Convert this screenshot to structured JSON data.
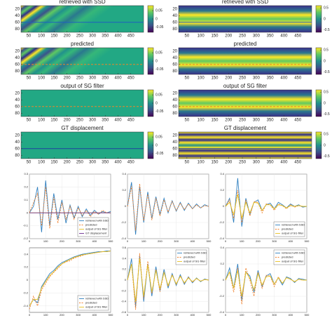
{
  "chart_data": [
    {
      "type": "heatmap",
      "title": "retrieved with SSD",
      "xlim": [
        20,
        500
      ],
      "xticks": [
        50,
        100,
        150,
        200,
        250,
        300,
        350,
        400,
        450
      ],
      "ylim": [
        10,
        90
      ],
      "yticks": [
        20,
        40,
        60,
        80
      ],
      "clim": [
        -0.08,
        0.08
      ],
      "cticks": [
        -0.05,
        0,
        0.05
      ],
      "colormap": "noise",
      "line_y": 60,
      "line_color": "#1f5fbf",
      "line_dash": false
    },
    {
      "type": "heatmap",
      "title": "retrieved with SSD",
      "xlim": [
        20,
        500
      ],
      "xticks": [
        50,
        100,
        150,
        200,
        250,
        300,
        350,
        400,
        450
      ],
      "ylim": [
        10,
        90
      ],
      "yticks": [
        20,
        40,
        60,
        80
      ],
      "clim": [
        -0.6,
        0.6
      ],
      "cticks": [
        -0.5,
        0,
        0.5
      ],
      "colormap": "fan",
      "line_y": 60,
      "line_color": "#1f5fbf",
      "line_dash": false
    },
    {
      "type": "heatmap",
      "title": "predicted",
      "xlim": [
        20,
        500
      ],
      "xticks": [
        50,
        100,
        150,
        200,
        250,
        300,
        350,
        400,
        450
      ],
      "ylim": [
        10,
        90
      ],
      "yticks": [
        20,
        40,
        60,
        80
      ],
      "clim": [
        -0.08,
        0.08
      ],
      "cticks": [
        -0.05,
        0,
        0.05
      ],
      "colormap": "noise",
      "line_y": 60,
      "line_color": "#e8862a",
      "line_dash": true
    },
    {
      "type": "heatmap",
      "title": "predicted",
      "xlim": [
        20,
        500
      ],
      "xticks": [
        50,
        100,
        150,
        200,
        250,
        300,
        350,
        400,
        450
      ],
      "ylim": [
        10,
        90
      ],
      "yticks": [
        20,
        40,
        60,
        80
      ],
      "clim": [
        -0.6,
        0.6
      ],
      "cticks": [
        -0.5,
        0,
        0.5
      ],
      "colormap": "fan",
      "line_y": 60,
      "line_color": "#e8862a",
      "line_dash": true
    },
    {
      "type": "heatmap",
      "title": "output of SG filter",
      "xlim": [
        20,
        500
      ],
      "xticks": [
        50,
        100,
        150,
        200,
        250,
        300,
        350,
        400,
        450
      ],
      "ylim": [
        10,
        90
      ],
      "yticks": [
        20,
        40,
        60,
        80
      ],
      "clim": [
        -0.08,
        0.08
      ],
      "cticks": [
        -0.05,
        0,
        0.05
      ],
      "colormap": "flat",
      "line_y": 60,
      "line_color": "#e8862a",
      "line_dash": true
    },
    {
      "type": "heatmap",
      "title": "output of SG filter",
      "xlim": [
        20,
        500
      ],
      "xticks": [
        50,
        100,
        150,
        200,
        250,
        300,
        350,
        400,
        450
      ],
      "ylim": [
        10,
        90
      ],
      "yticks": [
        20,
        40,
        60,
        80
      ],
      "clim": [
        -0.6,
        0.6
      ],
      "cticks": [
        -0.5,
        0,
        0.5
      ],
      "colormap": "fan",
      "line_y": 60,
      "line_color": "#e8862a",
      "line_dash": true
    },
    {
      "type": "heatmap",
      "title": "GT displacement",
      "xlim": [
        20,
        500
      ],
      "xticks": [
        50,
        100,
        150,
        200,
        250,
        300,
        350,
        400,
        450
      ],
      "ylim": [
        10,
        90
      ],
      "yticks": [
        20,
        40,
        60,
        80
      ],
      "clim": [
        -0.08,
        0.08
      ],
      "cticks": [
        -0.05,
        0,
        0.05
      ],
      "colormap": "flat",
      "line_y": 60,
      "line_color": "#1f3f9f",
      "line_dash": false
    },
    {
      "type": "heatmap",
      "title": "GT displacement",
      "xlim": [
        20,
        500
      ],
      "xticks": [
        50,
        100,
        150,
        200,
        250,
        300,
        350,
        400,
        450
      ],
      "ylim": [
        10,
        90
      ],
      "yticks": [
        20,
        40,
        60,
        80
      ],
      "clim": [
        -0.6,
        0.6
      ],
      "cticks": [
        -0.5,
        0,
        0.5
      ],
      "colormap": "fanstripes",
      "line_y": 60,
      "line_color": "#1f3f9f",
      "line_dash": false
    },
    {
      "type": "line",
      "xlim": [
        0,
        500
      ],
      "xticks": [
        0,
        100,
        200,
        300,
        400,
        500
      ],
      "ylim": [
        -0.2,
        0.3
      ],
      "yticks": [
        -0.2,
        -0.1,
        0,
        0.1,
        0.2,
        0.3
      ],
      "legend": "lower right",
      "x": [
        0,
        25,
        50,
        75,
        100,
        125,
        150,
        175,
        200,
        225,
        250,
        275,
        300,
        325,
        350,
        375,
        400,
        425,
        450,
        475,
        500
      ],
      "series": [
        {
          "name": "retrieved with SSD",
          "color": "#2f7fbf",
          "dash": false,
          "values": [
            0,
            0.05,
            0.2,
            -0.15,
            0.25,
            -0.1,
            0.15,
            -0.05,
            0.1,
            -0.08,
            0.06,
            -0.04,
            0.05,
            -0.03,
            0.03,
            -0.02,
            0.02,
            -0.01,
            0.01,
            0,
            0.01
          ]
        },
        {
          "name": "predicted",
          "color": "#f07f2a",
          "dash": true,
          "values": [
            0,
            0.08,
            0.15,
            -0.1,
            0.2,
            -0.12,
            0.12,
            -0.08,
            0.08,
            -0.05,
            0.05,
            -0.05,
            0.04,
            -0.02,
            0.02,
            -0.03,
            0.01,
            -0.01,
            0.02,
            0,
            0
          ]
        },
        {
          "name": "output of SG filter",
          "color": "#e8c020",
          "dash": false,
          "values": [
            0,
            0,
            0,
            0,
            0,
            0,
            0,
            0,
            0,
            0,
            0,
            0,
            0,
            0,
            0,
            0,
            0,
            0,
            0,
            0,
            0
          ]
        },
        {
          "name": "GT displacement",
          "color": "#6a2c91",
          "dash": false,
          "values": [
            0,
            0,
            0,
            0,
            0,
            0,
            0,
            0,
            0,
            0,
            0,
            0,
            0,
            0,
            0,
            0,
            0,
            0,
            0,
            0,
            0
          ]
        }
      ]
    },
    {
      "type": "line",
      "xlim": [
        0,
        500
      ],
      "xticks": [
        0,
        100,
        200,
        300,
        400,
        500
      ],
      "ylim": [
        -0.4,
        0.4
      ],
      "yticks": [
        -0.4,
        -0.2,
        0,
        0.2,
        0.4
      ],
      "legend": null,
      "x": [
        0,
        25,
        50,
        75,
        100,
        125,
        150,
        175,
        200,
        225,
        250,
        275,
        300,
        325,
        350,
        375,
        400,
        425,
        450,
        475,
        500
      ],
      "series": [
        {
          "color": "#2f7fbf",
          "dash": false,
          "values": [
            0,
            0.3,
            -0.35,
            0.25,
            -0.2,
            0.18,
            -0.15,
            0.12,
            -0.1,
            0.1,
            -0.08,
            0.07,
            -0.06,
            0.05,
            -0.05,
            0.04,
            -0.03,
            0.03,
            -0.02,
            0.02,
            0
          ]
        },
        {
          "color": "#f07f2a",
          "dash": true,
          "values": [
            0,
            0.25,
            -0.3,
            0.28,
            -0.18,
            0.15,
            -0.17,
            0.1,
            -0.12,
            0.08,
            -0.07,
            0.06,
            -0.05,
            0.04,
            -0.04,
            0.03,
            -0.03,
            0.02,
            -0.02,
            0.01,
            0
          ]
        }
      ]
    },
    {
      "type": "line",
      "xlim": [
        0,
        500
      ],
      "xticks": [
        0,
        100,
        200,
        300,
        400,
        500
      ],
      "ylim": [
        -0.4,
        0.4
      ],
      "yticks": [
        -0.4,
        -0.2,
        0,
        0.2,
        0.4
      ],
      "legend": "lower right",
      "x": [
        0,
        25,
        50,
        75,
        100,
        125,
        150,
        175,
        200,
        225,
        250,
        275,
        300,
        325,
        350,
        375,
        400,
        425,
        450,
        475,
        500
      ],
      "series": [
        {
          "name": "retrieved with SSD",
          "color": "#2f7fbf",
          "dash": false,
          "values": [
            0,
            0.1,
            -0.2,
            0.35,
            -0.25,
            0.1,
            -0.1,
            0.05,
            0.08,
            -0.05,
            0.02,
            0.04,
            -0.03,
            0.05,
            0.02,
            -0.02,
            0.03,
            0,
            0.02,
            -0.01,
            0
          ]
        },
        {
          "name": "predicted",
          "color": "#f07f2a",
          "dash": true,
          "values": [
            0,
            0.08,
            -0.15,
            0.2,
            -0.2,
            0.08,
            -0.12,
            0.06,
            0.05,
            -0.08,
            0.03,
            0.02,
            -0.05,
            0.03,
            0.01,
            -0.03,
            0.02,
            -0.01,
            0.01,
            0,
            0
          ]
        },
        {
          "name": "output of SG filter",
          "color": "#e8c020",
          "dash": false,
          "values": [
            0,
            0.05,
            -0.1,
            0.15,
            -0.15,
            0.05,
            -0.08,
            0.05,
            0.04,
            -0.05,
            0.02,
            0.02,
            -0.03,
            0.02,
            0.01,
            -0.02,
            0.01,
            0,
            0.01,
            0,
            0
          ]
        }
      ]
    },
    {
      "type": "line",
      "xlim": [
        0,
        500
      ],
      "xticks": [
        0,
        100,
        200,
        300,
        400,
        500
      ],
      "ylim": [
        -0.5,
        0.5
      ],
      "yticks": [
        -0.4,
        -0.2,
        0,
        0.2,
        0.4
      ],
      "legend": "lower right",
      "x": [
        0,
        25,
        50,
        75,
        100,
        125,
        150,
        175,
        200,
        225,
        250,
        275,
        300,
        325,
        350,
        375,
        400,
        425,
        450,
        475,
        500
      ],
      "series": [
        {
          "name": "retrieved with SSD",
          "color": "#2f7fbf",
          "dash": false,
          "values": [
            -0.4,
            -0.3,
            -0.35,
            -0.1,
            0,
            0.1,
            0.15,
            0.22,
            0.27,
            0.3,
            0.33,
            0.36,
            0.38,
            0.4,
            0.41,
            0.42,
            0.43,
            0.44,
            0.44,
            0.45,
            0.45
          ]
        },
        {
          "name": "predicted",
          "color": "#f07f2a",
          "dash": true,
          "values": [
            -0.45,
            -0.25,
            -0.4,
            -0.15,
            -0.05,
            0.05,
            0.12,
            0.18,
            0.25,
            0.28,
            0.3,
            0.34,
            0.36,
            0.38,
            0.4,
            0.41,
            0.42,
            0.43,
            0.44,
            0.44,
            0.45
          ]
        },
        {
          "name": "output of SG filter",
          "color": "#e8c020",
          "dash": false,
          "values": [
            -0.4,
            -0.3,
            -0.3,
            -0.12,
            -0.02,
            0.07,
            0.13,
            0.2,
            0.25,
            0.29,
            0.32,
            0.35,
            0.37,
            0.39,
            0.4,
            0.41,
            0.42,
            0.43,
            0.44,
            0.44,
            0.45
          ]
        }
      ]
    },
    {
      "type": "line",
      "xlim": [
        0,
        500
      ],
      "xticks": [
        0,
        100,
        200,
        300,
        400,
        500
      ],
      "ylim": [
        -0.6,
        0.6
      ],
      "yticks": [
        -0.6,
        -0.4,
        -0.2,
        0,
        0.2,
        0.4,
        0.6
      ],
      "legend": "upper right",
      "x": [
        0,
        25,
        50,
        75,
        100,
        125,
        150,
        175,
        200,
        225,
        250,
        275,
        300,
        325,
        350,
        375,
        400,
        425,
        450,
        475,
        500
      ],
      "series": [
        {
          "name": "retrieved with SSD",
          "color": "#2f7fbf",
          "dash": false,
          "values": [
            0,
            0.4,
            -0.5,
            0.45,
            -0.4,
            0.3,
            -0.3,
            0.25,
            -0.2,
            0.2,
            -0.15,
            0.12,
            -0.1,
            0.1,
            -0.08,
            0.06,
            -0.05,
            0.04,
            -0.03,
            0.02,
            0
          ]
        },
        {
          "name": "predicted",
          "color": "#f07f2a",
          "dash": true,
          "values": [
            0,
            0.3,
            -0.55,
            0.5,
            -0.35,
            0.35,
            -0.25,
            0.2,
            -0.22,
            0.15,
            -0.12,
            0.1,
            -0.08,
            0.08,
            -0.06,
            0.05,
            -0.04,
            0.03,
            -0.02,
            0.01,
            0
          ]
        },
        {
          "name": "output of SG filter",
          "color": "#e8c020",
          "dash": false,
          "values": [
            0,
            0.3,
            -0.4,
            0.4,
            -0.3,
            0.28,
            -0.22,
            0.18,
            -0.16,
            0.14,
            -0.1,
            0.09,
            -0.07,
            0.07,
            -0.05,
            0.04,
            -0.03,
            0.03,
            -0.02,
            0.01,
            0
          ]
        }
      ]
    },
    {
      "type": "line",
      "xlim": [
        0,
        500
      ],
      "xticks": [
        0,
        100,
        200,
        300,
        400,
        500
      ],
      "ylim": [
        -0.4,
        0.4
      ],
      "yticks": [
        -0.4,
        -0.2,
        0,
        0.2,
        0.4
      ],
      "legend": "upper right",
      "x": [
        0,
        25,
        50,
        75,
        100,
        125,
        150,
        175,
        200,
        225,
        250,
        275,
        300,
        325,
        350,
        375,
        400,
        425,
        450,
        475,
        500
      ],
      "series": [
        {
          "name": "retrieved with SSD",
          "color": "#2f7fbf",
          "dash": false,
          "values": [
            0,
            0.15,
            -0.1,
            0.2,
            -0.25,
            0.1,
            0.05,
            -0.15,
            0.12,
            -0.08,
            0.05,
            0.08,
            -0.05,
            0.03,
            -0.06,
            0.04,
            0.02,
            -0.03,
            0.02,
            0.01,
            0
          ]
        },
        {
          "name": "predicted",
          "color": "#f07f2a",
          "dash": true,
          "values": [
            0,
            0.1,
            -0.15,
            0.15,
            -0.3,
            0.15,
            0,
            -0.2,
            0.1,
            -0.1,
            0.06,
            0.05,
            -0.08,
            0.04,
            -0.04,
            0.03,
            0.01,
            -0.02,
            0.01,
            0,
            0
          ]
        },
        {
          "name": "output of SG filter",
          "color": "#e8c020",
          "dash": false,
          "values": [
            0,
            0.1,
            -0.1,
            0.12,
            -0.2,
            0.1,
            0.02,
            -0.12,
            0.08,
            -0.06,
            0.04,
            0.05,
            -0.05,
            0.03,
            -0.04,
            0.03,
            0.01,
            -0.02,
            0.01,
            0,
            0
          ]
        }
      ]
    }
  ]
}
